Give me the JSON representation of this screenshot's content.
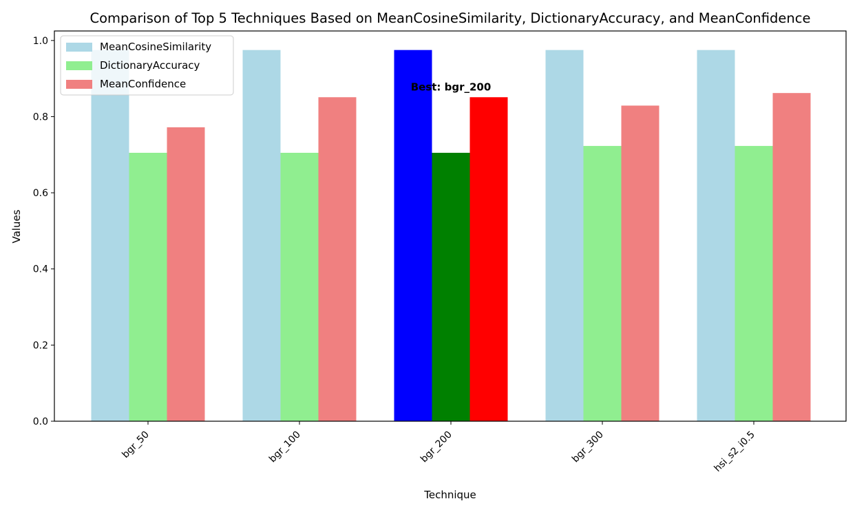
{
  "chart_data": {
    "type": "bar",
    "title": "Comparison of Top 5 Techniques Based on MeanCosineSimilarity, DictionaryAccuracy, and MeanConfidence",
    "xlabel": "Technique",
    "ylabel": "Values",
    "ylim": [
      0,
      1.025
    ],
    "yticks": [
      0.0,
      0.2,
      0.4,
      0.6,
      0.8,
      1.0
    ],
    "ytick_labels": [
      "0.0",
      "0.2",
      "0.4",
      "0.6",
      "0.8",
      "1.0"
    ],
    "categories": [
      "bgr_50",
      "bgr_100",
      "bgr_200",
      "bgr_300",
      "hsi_s2_i0.5"
    ],
    "series": [
      {
        "name": "MeanCosineSimilarity",
        "color": "#add8e6",
        "values": [
          0.975,
          0.975,
          0.975,
          0.975,
          0.975
        ]
      },
      {
        "name": "DictionaryAccuracy",
        "color": "#90ee90",
        "values": [
          0.705,
          0.705,
          0.705,
          0.723,
          0.723
        ]
      },
      {
        "name": "MeanConfidence",
        "color": "#f08080",
        "values": [
          0.772,
          0.851,
          0.851,
          0.829,
          0.862
        ]
      }
    ],
    "highlight": {
      "category": "bgr_200",
      "colors": [
        "#0000ff",
        "#008000",
        "#ff0000"
      ],
      "label": "Best: bgr_200"
    },
    "legend_position": "top-left",
    "grid": false
  }
}
